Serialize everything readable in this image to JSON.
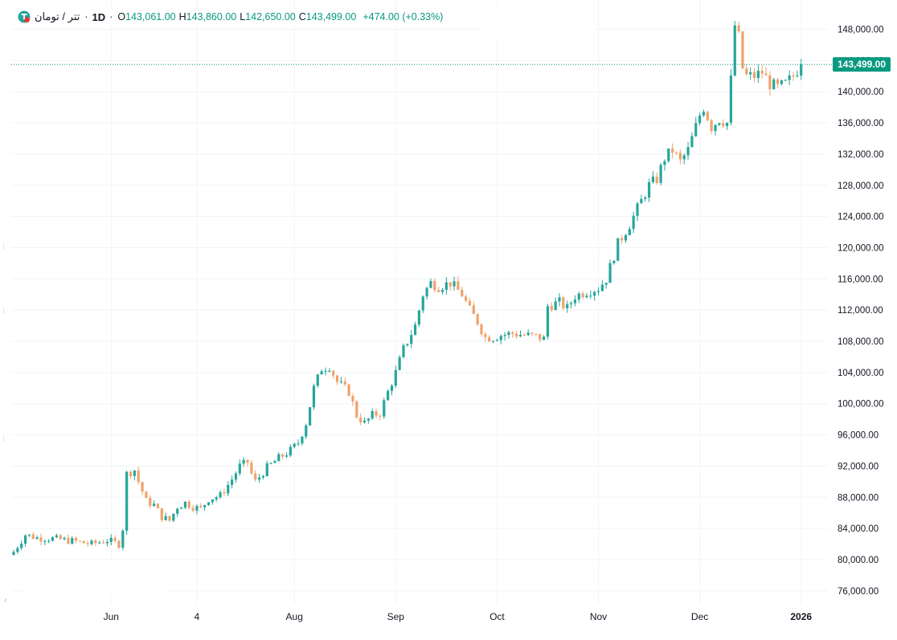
{
  "legend": {
    "symbol": "تتر / تومان",
    "timeframe": "1D",
    "open_label": "O",
    "open": "143,061.00",
    "high_label": "H",
    "high": "143,860.00",
    "low_label": "L",
    "low": "142,650.00",
    "close_label": "C",
    "close": "143,499.00",
    "change": "+474.00 (+0.33%)"
  },
  "colors": {
    "up": "#26a69a",
    "down": "#f0a26b",
    "grid": "#f0f3fa",
    "axis_text": "#131722",
    "price_label_bg": "#089981",
    "price_line": "#089981"
  },
  "chart_data": {
    "type": "candlestick",
    "title": "تتر / تومان",
    "interval": "1D",
    "y_axis": {
      "position": "right",
      "ticks": [
        {
          "value": 76000,
          "label": "76,000.00"
        },
        {
          "value": 80000,
          "label": "80,000.00"
        },
        {
          "value": 84000,
          "label": "84,000.00"
        },
        {
          "value": 88000,
          "label": "88,000.00"
        },
        {
          "value": 92000,
          "label": "92,000.00"
        },
        {
          "value": 96000,
          "label": "96,000.00"
        },
        {
          "value": 100000,
          "label": "100,000.00"
        },
        {
          "value": 104000,
          "label": "104,000.00"
        },
        {
          "value": 108000,
          "label": "108,000.00"
        },
        {
          "value": 112000,
          "label": "112,000.00"
        },
        {
          "value": 116000,
          "label": "116,000.00"
        },
        {
          "value": 120000,
          "label": "120,000.00"
        },
        {
          "value": 124000,
          "label": "124,000.00"
        },
        {
          "value": 128000,
          "label": "128,000.00"
        },
        {
          "value": 132000,
          "label": "132,000.00"
        },
        {
          "value": 136000,
          "label": "136,000.00"
        },
        {
          "value": 140000,
          "label": "140,000.00"
        },
        {
          "value": 144000,
          "label": "144,000.00"
        },
        {
          "value": 148000,
          "label": "148,000.00"
        }
      ]
    },
    "x_axis": {
      "ticks": [
        {
          "index": 25,
          "label": "Jun",
          "bold": false
        },
        {
          "index": 47,
          "label": "4",
          "bold": false
        },
        {
          "index": 72,
          "label": "Aug",
          "bold": false
        },
        {
          "index": 98,
          "label": "Sep",
          "bold": false
        },
        {
          "index": 124,
          "label": "Oct",
          "bold": false
        },
        {
          "index": 150,
          "label": "Nov",
          "bold": false
        },
        {
          "index": 176,
          "label": "Dec",
          "bold": false
        },
        {
          "index": 202,
          "label": "2026",
          "bold": true
        }
      ]
    },
    "last_price": 143499,
    "last_price_label": "143,499.00",
    "path_points": [
      [
        0,
        81000
      ],
      [
        3,
        83200
      ],
      [
        6,
        82800
      ],
      [
        10,
        82700
      ],
      [
        15,
        82400
      ],
      [
        20,
        82000
      ],
      [
        24,
        82500
      ],
      [
        27,
        82000
      ],
      [
        28,
        84000
      ],
      [
        29,
        91000
      ],
      [
        31,
        91500
      ],
      [
        32,
        90000
      ],
      [
        34,
        87500
      ],
      [
        36,
        87000
      ],
      [
        38,
        85500
      ],
      [
        40,
        85000
      ],
      [
        42,
        86800
      ],
      [
        44,
        87300
      ],
      [
        46,
        86800
      ],
      [
        48,
        86500
      ],
      [
        50,
        87800
      ],
      [
        53,
        88200
      ],
      [
        56,
        90300
      ],
      [
        58,
        92000
      ],
      [
        60,
        92500
      ],
      [
        61,
        91000
      ],
      [
        62,
        90000
      ],
      [
        65,
        91800
      ],
      [
        68,
        93000
      ],
      [
        71,
        94000
      ],
      [
        73,
        95000
      ],
      [
        75,
        97500
      ],
      [
        77,
        102000
      ],
      [
        79,
        104500
      ],
      [
        81,
        104800
      ],
      [
        83,
        102800
      ],
      [
        86,
        101500
      ],
      [
        88,
        98500
      ],
      [
        90,
        97500
      ],
      [
        92,
        98500
      ],
      [
        94,
        98800
      ],
      [
        96,
        101500
      ],
      [
        98,
        104000
      ],
      [
        100,
        107000
      ],
      [
        103,
        110000
      ],
      [
        105,
        114000
      ],
      [
        107,
        115500
      ],
      [
        109,
        115000
      ],
      [
        112,
        115500
      ],
      [
        115,
        114000
      ],
      [
        117,
        112000
      ],
      [
        119,
        110500
      ],
      [
        121,
        108500
      ],
      [
        123,
        108500
      ],
      [
        125,
        108800
      ],
      [
        128,
        109000
      ],
      [
        131,
        108800
      ],
      [
        134,
        108600
      ],
      [
        136,
        108300
      ],
      [
        137,
        112500
      ],
      [
        140,
        113000
      ],
      [
        142,
        112200
      ],
      [
        144,
        113800
      ],
      [
        147,
        114400
      ],
      [
        150,
        114800
      ],
      [
        152,
        116000
      ],
      [
        155,
        120500
      ],
      [
        158,
        123000
      ],
      [
        161,
        126000
      ],
      [
        163,
        128000
      ],
      [
        165,
        128800
      ],
      [
        167,
        131500
      ],
      [
        169,
        132500
      ],
      [
        171,
        131000
      ],
      [
        173,
        132500
      ],
      [
        175,
        135500
      ],
      [
        176,
        137000
      ],
      [
        177,
        138000
      ],
      [
        179,
        135500
      ],
      [
        181,
        136500
      ],
      [
        183,
        136000
      ],
      [
        184,
        141500
      ],
      [
        185,
        148500
      ],
      [
        186,
        147000
      ],
      [
        187,
        143000
      ],
      [
        188,
        142000
      ],
      [
        190,
        142000
      ],
      [
        192,
        142500
      ],
      [
        194,
        141000
      ],
      [
        196,
        140500
      ],
      [
        198,
        141000
      ],
      [
        200,
        142000
      ],
      [
        202,
        143499
      ]
    ]
  }
}
